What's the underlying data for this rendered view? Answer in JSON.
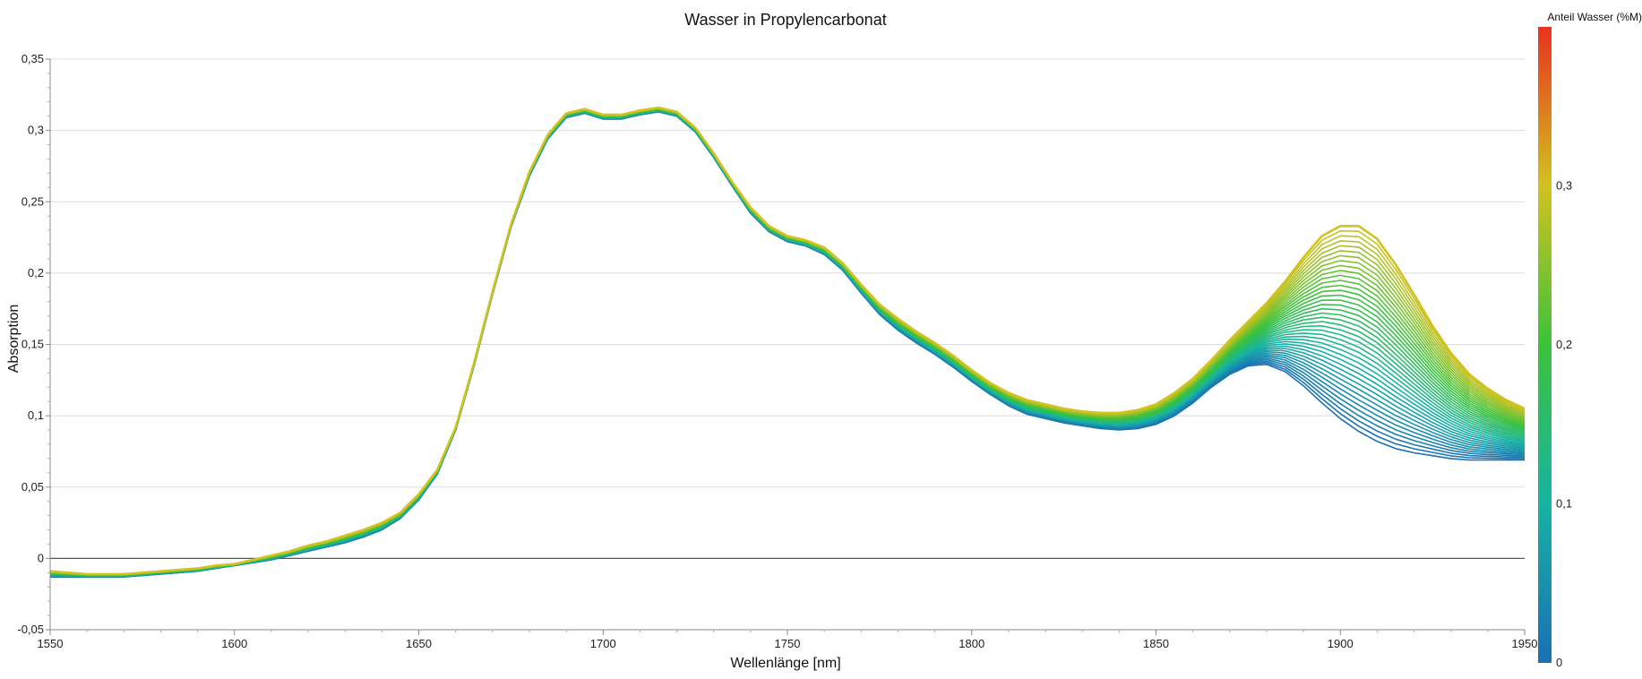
{
  "chart_data": {
    "type": "line",
    "title": "Wasser in Propylencarbonat",
    "xlabel": "Wellenlänge [nm]",
    "ylabel": "Absorption",
    "xlim": [
      1550,
      1950
    ],
    "ylim": [
      -0.05,
      0.35
    ],
    "x_ticks": [
      1550,
      1600,
      1650,
      1700,
      1750,
      1800,
      1850,
      1900,
      1950
    ],
    "x_tick_labels": [
      "1550",
      "1600",
      "1650",
      "1700",
      "1750",
      "1800",
      "1850",
      "1900",
      "1950"
    ],
    "y_ticks": [
      -0.05,
      0,
      0.05,
      0.1,
      0.15,
      0.2,
      0.25,
      0.3,
      0.35
    ],
    "y_tick_labels": [
      "-0,05",
      "0",
      "0,05",
      "0,1",
      "0,15",
      "0,2",
      "0,25",
      "0,3",
      "0,35"
    ],
    "grid": true,
    "colorbar": {
      "title": "Anteil Wasser (%M)",
      "range": [
        0,
        0.4
      ],
      "ticks": [
        0,
        0.1,
        0.2,
        0.3
      ],
      "tick_labels": [
        "0",
        "0,1",
        "0,2",
        "0,3"
      ],
      "colors": [
        "#1a6fb4",
        "#17b3a4",
        "#3cc23a",
        "#d2c21f",
        "#e8321e"
      ]
    },
    "x": [
      1550,
      1555,
      1560,
      1565,
      1570,
      1575,
      1580,
      1585,
      1590,
      1595,
      1600,
      1605,
      1610,
      1615,
      1620,
      1625,
      1630,
      1635,
      1640,
      1645,
      1650,
      1655,
      1660,
      1665,
      1670,
      1675,
      1680,
      1685,
      1690,
      1695,
      1700,
      1705,
      1710,
      1715,
      1720,
      1725,
      1730,
      1735,
      1740,
      1745,
      1750,
      1755,
      1760,
      1765,
      1770,
      1775,
      1780,
      1785,
      1790,
      1795,
      1800,
      1805,
      1810,
      1815,
      1820,
      1825,
      1830,
      1835,
      1840,
      1845,
      1850,
      1855,
      1860,
      1865,
      1870,
      1875,
      1880,
      1885,
      1890,
      1895,
      1900,
      1905,
      1910,
      1915,
      1920,
      1925,
      1930,
      1935,
      1940,
      1945,
      1950
    ],
    "series": [
      {
        "water": 0.0,
        "values": [
          -0.013,
          -0.013,
          -0.013,
          -0.013,
          -0.013,
          -0.012,
          -0.011,
          -0.01,
          -0.009,
          -0.007,
          -0.005,
          -0.003,
          -0.001,
          0.002,
          0.005,
          0.008,
          0.011,
          0.015,
          0.02,
          0.028,
          0.041,
          0.059,
          0.09,
          0.135,
          0.185,
          0.232,
          0.268,
          0.294,
          0.309,
          0.312,
          0.308,
          0.308,
          0.311,
          0.313,
          0.31,
          0.299,
          0.281,
          0.261,
          0.242,
          0.229,
          0.222,
          0.219,
          0.213,
          0.202,
          0.186,
          0.171,
          0.16,
          0.151,
          0.143,
          0.134,
          0.124,
          0.115,
          0.107,
          0.101,
          0.098,
          0.095,
          0.093,
          0.091,
          0.09,
          0.091,
          0.094,
          0.1,
          0.109,
          0.12,
          0.129,
          0.135,
          0.136,
          0.131,
          0.121,
          0.109,
          0.098,
          0.089,
          0.082,
          0.077,
          0.074,
          0.072,
          0.07,
          0.069,
          0.069,
          0.069,
          0.069
        ]
      },
      {
        "water": 0.3,
        "values": [
          -0.009,
          -0.01,
          -0.011,
          -0.011,
          -0.011,
          -0.01,
          -0.009,
          -0.008,
          -0.007,
          -0.005,
          -0.004,
          -0.001,
          0.002,
          0.005,
          0.009,
          0.012,
          0.016,
          0.02,
          0.025,
          0.032,
          0.045,
          0.062,
          0.092,
          0.137,
          0.187,
          0.234,
          0.271,
          0.297,
          0.312,
          0.315,
          0.311,
          0.311,
          0.314,
          0.316,
          0.313,
          0.302,
          0.284,
          0.264,
          0.246,
          0.233,
          0.226,
          0.223,
          0.218,
          0.207,
          0.192,
          0.178,
          0.168,
          0.159,
          0.151,
          0.142,
          0.132,
          0.123,
          0.116,
          0.111,
          0.108,
          0.105,
          0.103,
          0.102,
          0.102,
          0.104,
          0.108,
          0.116,
          0.126,
          0.139,
          0.153,
          0.166,
          0.179,
          0.194,
          0.211,
          0.226,
          0.233,
          0.233,
          0.224,
          0.206,
          0.185,
          0.163,
          0.144,
          0.129,
          0.119,
          0.111,
          0.105
        ]
      }
    ],
    "n_curves": 40
  }
}
